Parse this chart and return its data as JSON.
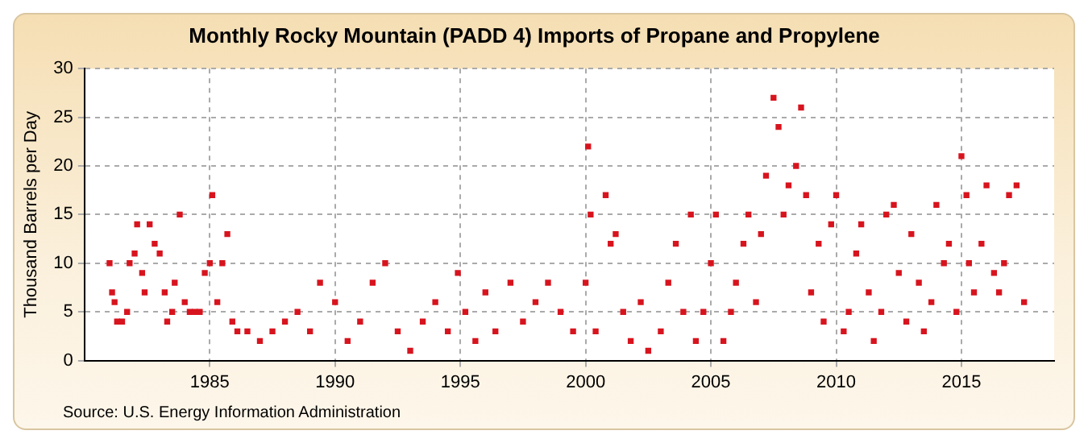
{
  "chart_data": {
    "type": "scatter",
    "title": "Monthly Rocky Mountain (PADD 4) Imports of Propane and Propylene",
    "ylabel": "Thousand Barrels per Day",
    "annotations": [
      "Source: U.S. Energy Information Administration"
    ],
    "x": [
      1981.0,
      1981.1,
      1981.2,
      1981.3,
      1981.5,
      1981.7,
      1981.8,
      1982.0,
      1982.1,
      1982.3,
      1982.4,
      1982.6,
      1982.8,
      1983.0,
      1983.2,
      1983.3,
      1983.5,
      1983.6,
      1983.8,
      1984.0,
      1984.2,
      1984.4,
      1984.6,
      1984.8,
      1985.0,
      1985.1,
      1985.3,
      1985.5,
      1985.7,
      1985.9,
      1986.1,
      1986.5,
      1987.0,
      1987.5,
      1988.0,
      1988.5,
      1989.0,
      1989.4,
      1990.0,
      1990.5,
      1991.0,
      1991.5,
      1992.0,
      1992.5,
      1993.0,
      1993.5,
      1994.0,
      1994.5,
      1994.9,
      1995.2,
      1995.6,
      1996.0,
      1996.4,
      1997.0,
      1997.5,
      1998.0,
      1998.5,
      1999.0,
      1999.5,
      2000.0,
      2000.1,
      2000.2,
      2000.4,
      2000.8,
      2001.0,
      2001.2,
      2001.5,
      2001.8,
      2002.2,
      2002.5,
      2003.0,
      2003.3,
      2003.6,
      2003.9,
      2004.2,
      2004.4,
      2004.7,
      2005.0,
      2005.2,
      2005.5,
      2005.8,
      2006.0,
      2006.3,
      2006.5,
      2006.8,
      2007.0,
      2007.2,
      2007.5,
      2007.7,
      2007.9,
      2008.1,
      2008.4,
      2008.6,
      2008.8,
      2009.0,
      2009.3,
      2009.5,
      2009.8,
      2010.0,
      2010.3,
      2010.5,
      2010.8,
      2011.0,
      2011.3,
      2011.5,
      2011.8,
      2012.0,
      2012.3,
      2012.5,
      2012.8,
      2013.0,
      2013.3,
      2013.5,
      2013.8,
      2014.0,
      2014.3,
      2014.5,
      2014.8,
      2015.0,
      2015.2,
      2015.3,
      2015.5,
      2015.8,
      2016.0,
      2016.3,
      2016.5,
      2016.7,
      2016.9,
      2017.2,
      2017.5
    ],
    "values": [
      10,
      7,
      6,
      4,
      4,
      5,
      10,
      11,
      14,
      9,
      7,
      14,
      12,
      11,
      7,
      4,
      5,
      8,
      15,
      6,
      5,
      5,
      5,
      9,
      10,
      17,
      6,
      10,
      13,
      4,
      3,
      3,
      2,
      3,
      4,
      5,
      3,
      8,
      6,
      2,
      4,
      8,
      10,
      3,
      1,
      4,
      6,
      3,
      9,
      5,
      2,
      7,
      3,
      8,
      4,
      6,
      8,
      5,
      3,
      8,
      22,
      15,
      3,
      17,
      12,
      13,
      5,
      2,
      6,
      1,
      3,
      8,
      12,
      5,
      15,
      2,
      5,
      10,
      15,
      2,
      5,
      8,
      12,
      15,
      6,
      13,
      19,
      27,
      24,
      15,
      18,
      20,
      26,
      17,
      7,
      12,
      4,
      14,
      17,
      3,
      5,
      11,
      14,
      7,
      2,
      5,
      15,
      16,
      9,
      4,
      13,
      8,
      3,
      6,
      16,
      10,
      12,
      5,
      21,
      17,
      10,
      7,
      12,
      18,
      9,
      7,
      10,
      17,
      18,
      6
    ],
    "color": "#d7141e",
    "marker": "square",
    "grid": true,
    "xlim": [
      1980,
      2018.7
    ],
    "xticks": [
      1985,
      1990,
      1995,
      2000,
      2005,
      2010,
      2015
    ],
    "ylim": [
      0,
      30
    ],
    "yticks": [
      0,
      5,
      10,
      15,
      20,
      25,
      30
    ]
  }
}
